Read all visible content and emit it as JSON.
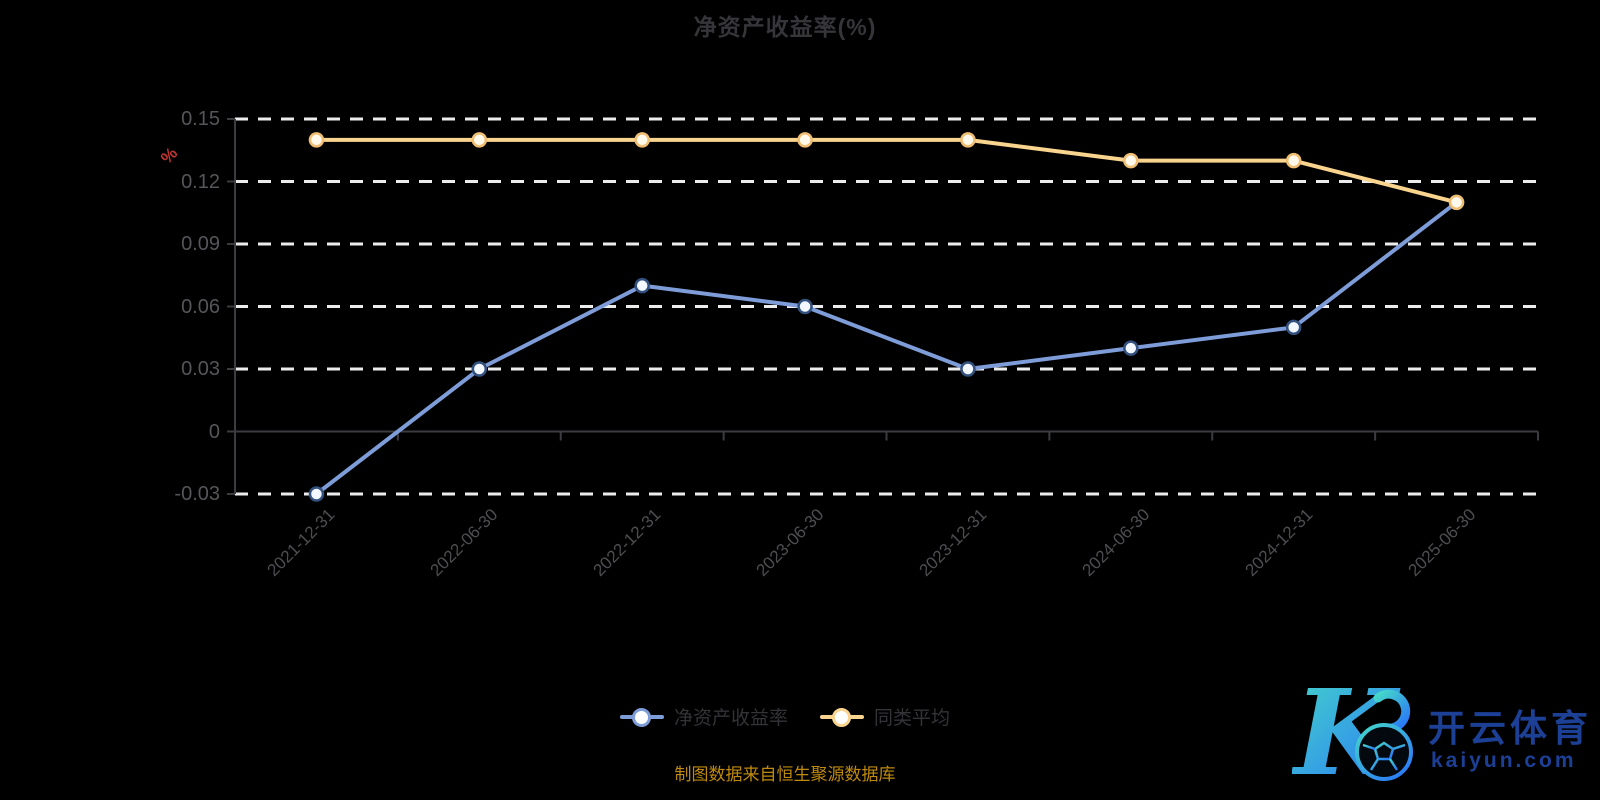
{
  "title": "净资产收益率(%)",
  "source_note": "制图数据来自恒生聚源数据库",
  "watermark": {
    "brand": "开云体育",
    "domain": "kaiyun.com"
  },
  "legend": {
    "items": [
      {
        "label": "净资产收益率",
        "color": "#7D9CD8"
      },
      {
        "label": "同类平均",
        "color": "#F9D48F"
      }
    ]
  },
  "chart_data": {
    "type": "line",
    "title": "净资产收益率(%)",
    "xlabel": "",
    "ylabel": "%",
    "categories": [
      "2021-12-31",
      "2022-06-30",
      "2022-12-31",
      "2023-06-30",
      "2023-12-31",
      "2024-06-30",
      "2024-12-31",
      "2025-06-30"
    ],
    "series": [
      {
        "name": "净资产收益率",
        "color": "#7D9CD8",
        "marker_fill": "#F3F8FF",
        "marker_border": "#33517E",
        "values": [
          -0.03,
          0.03,
          0.07,
          0.06,
          0.03,
          0.04,
          0.05,
          0.11
        ]
      },
      {
        "name": "同类平均",
        "color": "#F9D48F",
        "marker_fill": "#FFF9EC",
        "marker_border": "#EFBE72",
        "values": [
          0.14,
          0.14,
          0.14,
          0.14,
          0.14,
          0.13,
          0.13,
          0.11
        ]
      }
    ],
    "yticks": [
      0.15,
      0.12,
      0.09,
      0.06,
      0.03,
      0,
      -0.03
    ],
    "ylim": [
      -0.03,
      0.15
    ],
    "grid": true,
    "grid_style": "dashed",
    "x_label_rotation": 45,
    "legend_position": "bottom"
  },
  "colors": {
    "background": "#000000",
    "gridline": "#ECECEC",
    "axis": "#3C3C40",
    "title_text": "#35353A",
    "y_axis_label": "#55555A",
    "x_axis_label": "#4E4E52",
    "unit_label": "#C23531",
    "legend_text": "#333338",
    "source_text": "#BE8A0E",
    "watermark_text": "#1D4097",
    "watermark_gradient_start": "#45D8C8",
    "watermark_gradient_end": "#2B7BF6"
  }
}
